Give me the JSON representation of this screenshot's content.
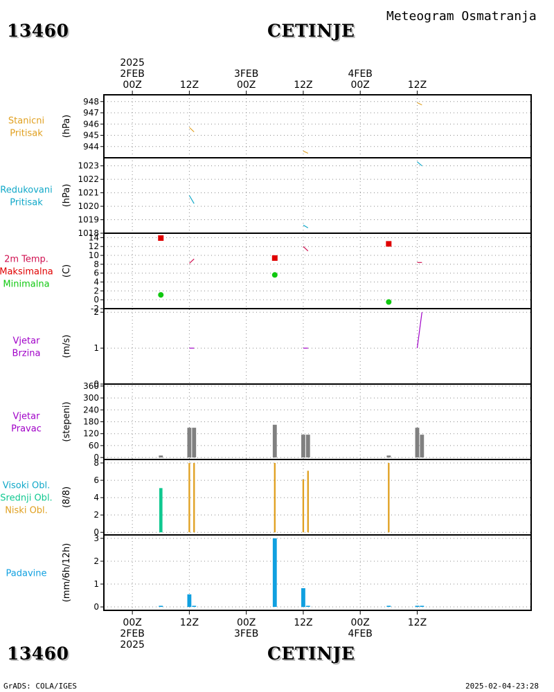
{
  "header": {
    "station_id": "13460",
    "station_name": "CETINJE",
    "product_title": "Meteogram Osmatranja"
  },
  "footer": {
    "credit": "GrADS: COLA/IGES",
    "timestamp": "2025-02-04-23:28"
  },
  "colors": {
    "orange": "#e0a020",
    "cyan": "#10a8c8",
    "crimson": "#d01050",
    "red": "#e00000",
    "green": "#10c810",
    "purple": "#a000c8",
    "gray": "#808080",
    "teal": "#10c890",
    "blue": "#10a0e0"
  },
  "chart_data": {
    "type": "meteogram",
    "x_range_hours": [
      -6,
      84
    ],
    "time_axis": {
      "ticks": [
        {
          "hour": 0,
          "label": "00Z"
        },
        {
          "hour": 12,
          "label": "12Z"
        },
        {
          "hour": 24,
          "label": "00Z"
        },
        {
          "hour": 36,
          "label": "12Z"
        },
        {
          "hour": 48,
          "label": "00Z"
        },
        {
          "hour": 60,
          "label": "12Z"
        }
      ],
      "date_labels": [
        {
          "hour": 0,
          "lines": [
            "2025",
            "2FEB"
          ]
        },
        {
          "hour": 24,
          "lines": [
            "3FEB"
          ]
        },
        {
          "hour": 48,
          "lines": [
            "4FEB"
          ]
        }
      ]
    },
    "panels": [
      {
        "id": "station-pressure",
        "labels": [
          {
            "text": "Stanicni",
            "color": "#e0a020"
          },
          {
            "text": "Pritisak",
            "color": "#e0a020"
          }
        ],
        "unit": "(hPa)",
        "ylim": [
          943,
          948.6
        ],
        "ticks": [
          944,
          945,
          946,
          947,
          948
        ],
        "tick_labels": [
          "944",
          "945",
          "946",
          "947",
          "948"
        ],
        "segments": [
          {
            "x1": 12,
            "y1": 945.7,
            "x2": 13,
            "y2": 945.3,
            "color": "#e0a020"
          },
          {
            "x1": 36,
            "y1": 943.6,
            "x2": 37,
            "y2": 943.4,
            "color": "#e0a020"
          },
          {
            "x1": 60,
            "y1": 947.9,
            "x2": 61,
            "y2": 947.7,
            "color": "#e0a020"
          }
        ]
      },
      {
        "id": "reduced-pressure",
        "labels": [
          {
            "text": "Redukovani",
            "color": "#10a8c8"
          },
          {
            "text": "Pritisak",
            "color": "#10a8c8"
          }
        ],
        "unit": "(hPa)",
        "ylim": [
          1018,
          1023.6
        ],
        "ticks": [
          1018,
          1019,
          1020,
          1021,
          1022,
          1023
        ],
        "tick_labels": [
          "1018",
          "1019",
          "1020",
          "1021",
          "1022",
          "1023"
        ],
        "segments": [
          {
            "x1": 12,
            "y1": 1020.8,
            "x2": 13,
            "y2": 1020.2,
            "color": "#10a8c8"
          },
          {
            "x1": 36,
            "y1": 1018.6,
            "x2": 37,
            "y2": 1018.4,
            "color": "#10a8c8"
          },
          {
            "x1": 60,
            "y1": 1023.3,
            "x2": 61,
            "y2": 1023.0,
            "color": "#10a8c8"
          }
        ]
      },
      {
        "id": "temperature",
        "labels": [
          {
            "text": "2m Temp.",
            "color": "#d01050"
          },
          {
            "text": "Maksimalna",
            "color": "#e00000"
          },
          {
            "text": "Minimalna",
            "color": "#10c810"
          }
        ],
        "unit": "(C)",
        "ylim": [
          -2,
          15
        ],
        "ticks": [
          -2,
          0,
          2,
          4,
          6,
          8,
          10,
          12,
          14
        ],
        "tick_labels": [
          "-2",
          "0",
          "2",
          "4",
          "6",
          "8",
          "10",
          "12",
          "14"
        ],
        "segments": [
          {
            "x1": 12,
            "y1": 8.2,
            "x2": 13,
            "y2": 9.2,
            "color": "#d01050"
          },
          {
            "x1": 36,
            "y1": 12.0,
            "x2": 37,
            "y2": 11.0,
            "color": "#d01050"
          },
          {
            "x1": 60,
            "y1": 8.4,
            "x2": 61,
            "y2": 8.4,
            "color": "#d01050"
          }
        ],
        "max_points": [
          {
            "x": 6,
            "y": 13.9
          },
          {
            "x": 30,
            "y": 9.4
          },
          {
            "x": 54,
            "y": 12.6
          }
        ],
        "min_points": [
          {
            "x": 6,
            "y": 1.1
          },
          {
            "x": 30,
            "y": 5.6
          },
          {
            "x": 54,
            "y": -0.5
          }
        ]
      },
      {
        "id": "wind-speed",
        "labels": [
          {
            "text": "Vjetar",
            "color": "#a000c8"
          },
          {
            "text": "Brzina",
            "color": "#a000c8"
          }
        ],
        "unit": "(m/s)",
        "ylim": [
          0,
          2.1
        ],
        "ticks": [
          0,
          1,
          2
        ],
        "tick_labels": [
          "0",
          "1",
          "2"
        ],
        "segments": [
          {
            "x1": 12,
            "y1": 1,
            "x2": 13,
            "y2": 1,
            "color": "#a000c8"
          },
          {
            "x1": 36,
            "y1": 1,
            "x2": 37,
            "y2": 1,
            "color": "#a000c8"
          },
          {
            "x1": 60,
            "y1": 1,
            "x2": 61,
            "y2": 2.0,
            "color": "#a000c8"
          }
        ]
      },
      {
        "id": "wind-direction",
        "labels": [
          {
            "text": "Vjetar",
            "color": "#a000c8"
          },
          {
            "text": "Pravac",
            "color": "#a000c8"
          }
        ],
        "unit": "(stepeni)",
        "ylim": [
          -10,
          370
        ],
        "ticks": [
          0,
          60,
          120,
          180,
          240,
          300,
          360
        ],
        "tick_labels": [
          "0",
          "60",
          "120",
          "180",
          "240",
          "300",
          "360"
        ],
        "bars": [
          {
            "x": 6,
            "y": 10,
            "w": 1,
            "color": "#808080"
          },
          {
            "x": 12,
            "y": 150,
            "w": 1,
            "color": "#808080"
          },
          {
            "x": 13,
            "y": 150,
            "w": 1,
            "color": "#808080"
          },
          {
            "x": 30,
            "y": 165,
            "w": 1,
            "color": "#808080"
          },
          {
            "x": 36,
            "y": 115,
            "w": 1,
            "color": "#808080"
          },
          {
            "x": 37,
            "y": 115,
            "w": 1,
            "color": "#808080"
          },
          {
            "x": 54,
            "y": 10,
            "w": 1,
            "color": "#808080"
          },
          {
            "x": 60,
            "y": 150,
            "w": 1,
            "color": "#808080"
          },
          {
            "x": 61,
            "y": 115,
            "w": 1,
            "color": "#808080"
          }
        ]
      },
      {
        "id": "cloud-cover",
        "labels": [
          {
            "text": "Visoki Obl.",
            "color": "#10a8c8"
          },
          {
            "text": "Srednji Obl.",
            "color": "#10c890"
          },
          {
            "text": "Niski Obl.",
            "color": "#e0a020"
          }
        ],
        "unit": "(8/8)",
        "ylim": [
          -0.3,
          8.4
        ],
        "ticks": [
          0,
          2,
          4,
          6,
          8
        ],
        "tick_labels": [
          "0",
          "2",
          "4",
          "6",
          "8"
        ],
        "bars": [
          {
            "x": 6,
            "y": 5.1,
            "w": 0.8,
            "color": "#10c890"
          },
          {
            "x": 12,
            "y": 8,
            "w": 0.4,
            "color": "#e0a020"
          },
          {
            "x": 13,
            "y": 8,
            "w": 0.4,
            "color": "#e0a020"
          },
          {
            "x": 30,
            "y": 8,
            "w": 0.4,
            "color": "#e0a020"
          },
          {
            "x": 36,
            "y": 6.1,
            "w": 0.4,
            "color": "#e0a020"
          },
          {
            "x": 37,
            "y": 7.1,
            "w": 0.4,
            "color": "#e0a020"
          },
          {
            "x": 54,
            "y": 8,
            "w": 0.4,
            "color": "#e0a020"
          }
        ]
      },
      {
        "id": "precipitation",
        "labels": [
          {
            "text": "Padavine",
            "color": "#10a0e0"
          }
        ],
        "unit": "(mm/6h/12h)",
        "ylim": [
          -0.15,
          3.15
        ],
        "ticks": [
          0,
          1,
          2,
          3
        ],
        "tick_labels": [
          "0",
          "1",
          "2",
          "3"
        ],
        "bars": [
          {
            "x": 6,
            "y": 0.05,
            "w": 1,
            "color": "#10a0e0"
          },
          {
            "x": 12,
            "y": 0.55,
            "w": 1,
            "color": "#10a0e0"
          },
          {
            "x": 13,
            "y": 0.05,
            "w": 1,
            "color": "#10a0e0"
          },
          {
            "x": 30,
            "y": 3.0,
            "w": 1,
            "color": "#10a0e0"
          },
          {
            "x": 36,
            "y": 0.82,
            "w": 1,
            "color": "#10a0e0"
          },
          {
            "x": 37,
            "y": 0.05,
            "w": 1,
            "color": "#10a0e0"
          },
          {
            "x": 54,
            "y": 0.05,
            "w": 1,
            "color": "#10a0e0"
          },
          {
            "x": 60,
            "y": 0.05,
            "w": 1,
            "color": "#10a0e0"
          },
          {
            "x": 61,
            "y": 0.05,
            "w": 1,
            "color": "#10a0e0"
          }
        ]
      }
    ]
  }
}
